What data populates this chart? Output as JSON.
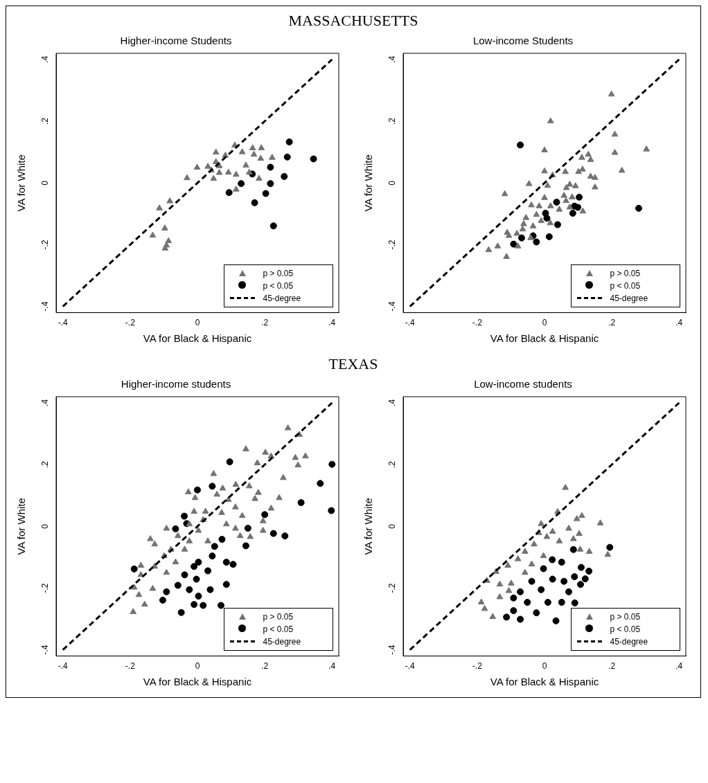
{
  "chart_data": [
    {
      "type": "scatter",
      "annotations": [
        "MASSACHUSETTS"
      ],
      "title": "Higher-income Students",
      "xlabel": "VA for Black & Hispanic",
      "ylabel": "VA for White",
      "xlim": [
        -0.42,
        0.42
      ],
      "ylim": [
        -0.42,
        0.42
      ],
      "xticks": [
        {
          "value": -0.4,
          "label": "-.4"
        },
        {
          "value": -0.2,
          "label": "-.2"
        },
        {
          "value": 0,
          "label": "0"
        },
        {
          "value": 0.2,
          "label": ".2"
        },
        {
          "value": 0.4,
          "label": ".4"
        }
      ],
      "yticks": [
        {
          "value": -0.4,
          "label": "-.4"
        },
        {
          "value": -0.2,
          "label": "-.2"
        },
        {
          "value": 0,
          "label": "0"
        },
        {
          "value": 0.2,
          "label": ".2"
        },
        {
          "value": 0.4,
          "label": ".4"
        }
      ],
      "grid": false,
      "legend": "bottom right",
      "series": [
        {
          "name": "p > 0.05",
          "type": "scatter",
          "marker": "triangle",
          "color": "#737373",
          "x": [
            0.055,
            0.111,
            0.083,
            0.133,
            0.164,
            0.19,
            0.168,
            0.188,
            0.222,
            -0.001,
            0.031,
            0.055,
            0.065,
            0.041,
            0.065,
            0.092,
            0.115,
            0.144,
            0.154,
            0.183,
            0.048,
            -0.031,
            0.115,
            -0.082,
            -0.113,
            -0.097,
            -0.133,
            -0.086,
            -0.092,
            -0.096
          ],
          "values": [
            0.099,
            0.122,
            0.089,
            0.1,
            0.113,
            0.113,
            0.092,
            0.079,
            0.082,
            0.05,
            0.053,
            0.068,
            0.055,
            0.041,
            0.033,
            0.034,
            0.027,
            0.057,
            0.034,
            0.014,
            0.014,
            0.016,
            -0.021,
            -0.059,
            -0.082,
            -0.147,
            -0.17,
            -0.188,
            -0.202,
            -0.212
          ]
        },
        {
          "name": "p < 0.05",
          "type": "scatter",
          "marker": "circle",
          "color": "#000000",
          "x": [
            0.217,
            0.163,
            0.13,
            0.094,
            0.217,
            0.203,
            0.17,
            0.226,
            0.273,
            0.267,
            0.258,
            0.345
          ],
          "values": [
            0.051,
            0.029,
            -0.002,
            -0.031,
            -0.002,
            -0.034,
            -0.064,
            -0.139,
            0.133,
            0.084,
            0.021,
            0.078
          ]
        },
        {
          "name": "45-degree",
          "type": "line",
          "marker": "none",
          "line_style": "dashed",
          "color": "#000000",
          "x": [
            -0.4,
            0.4
          ],
          "values": [
            -0.4,
            0.4
          ]
        }
      ]
    },
    {
      "type": "scatter",
      "title": "Low-income Students",
      "xlabel": "VA for Black & Hispanic",
      "ylabel": "VA for White",
      "xlim": [
        -0.42,
        0.42
      ],
      "ylim": [
        -0.42,
        0.42
      ],
      "xticks": [
        {
          "value": -0.4,
          "label": "-.4"
        },
        {
          "value": -0.2,
          "label": "-.2"
        },
        {
          "value": 0,
          "label": "0"
        },
        {
          "value": 0.2,
          "label": ".2"
        },
        {
          "value": 0.4,
          "label": ".4"
        }
      ],
      "yticks": [
        {
          "value": -0.4,
          "label": "-.4"
        },
        {
          "value": -0.2,
          "label": "-.2"
        },
        {
          "value": 0,
          "label": "0"
        },
        {
          "value": 0.2,
          "label": ".2"
        },
        {
          "value": 0.4,
          "label": ".4"
        }
      ],
      "grid": false,
      "legend": "bottom right",
      "series": [
        {
          "name": "p > 0.05",
          "type": "scatter",
          "marker": "triangle",
          "color": "#737373",
          "x": [
            0.018,
            0,
            0.209,
            0.209,
            0.303,
            0.23,
            0.199,
            0.111,
            0.13,
            0.137,
            0.113,
            0.101,
            0.062,
            0.024,
            0,
            0.137,
            0.15,
            0.15,
            0.075,
            0.092,
            0.065,
            0.009,
            -0.046,
            -0.118,
            0,
            0.058,
            0.082,
            0.064,
            -0.039,
            -0.016,
            0.018,
            0.044,
            0.075,
            0.114,
            -0.024,
            -0.055,
            -0.01,
            0.017,
            -0.062,
            -0.034,
            -0.065,
            -0.111,
            -0.082,
            -0.106,
            -0.041,
            -0.079,
            -0.139,
            -0.166,
            -0.113
          ],
          "values": [
            0.2,
            0.106,
            0.157,
            0.098,
            0.109,
            0.04,
            0.287,
            0.082,
            0.092,
            0.075,
            0.044,
            0.036,
            0.036,
            0.025,
            0.038,
            0.021,
            0.017,
            -0.014,
            -0.005,
            -0.01,
            -0.016,
            -0.009,
            -0.003,
            -0.036,
            -0.048,
            -0.041,
            -0.046,
            -0.058,
            -0.072,
            -0.075,
            -0.075,
            -0.086,
            -0.079,
            -0.092,
            -0.103,
            -0.113,
            -0.123,
            -0.13,
            -0.133,
            -0.14,
            -0.15,
            -0.161,
            -0.164,
            -0.171,
            -0.178,
            -0.205,
            -0.205,
            -0.217,
            -0.239
          ]
        },
        {
          "name": "p < 0.05",
          "type": "scatter",
          "marker": "circle",
          "color": "#000000",
          "x": [
            -0.072,
            0.28,
            0.103,
            0.036,
            0.089,
            0.099,
            0.084,
            0.003,
            0.007,
            0.039,
            0.014,
            -0.034,
            -0.068,
            -0.024,
            -0.092
          ],
          "values": [
            0.123,
            -0.082,
            -0.046,
            -0.062,
            -0.075,
            -0.079,
            -0.098,
            -0.098,
            -0.114,
            -0.135,
            -0.174,
            -0.171,
            -0.178,
            -0.191,
            -0.198
          ]
        },
        {
          "name": "45-degree",
          "type": "line",
          "marker": "none",
          "line_style": "dashed",
          "color": "#000000",
          "x": [
            -0.4,
            0.4
          ],
          "values": [
            -0.4,
            0.4
          ]
        }
      ]
    },
    {
      "type": "scatter",
      "annotations": [
        "TEXAS"
      ],
      "title": "Higher-income students",
      "xlabel": "VA for Black & Hispanic",
      "ylabel": "VA for White",
      "xlim": [
        -0.42,
        0.42
      ],
      "ylim": [
        -0.42,
        0.42
      ],
      "xticks": [
        {
          "value": -0.4,
          "label": "-.4"
        },
        {
          "value": -0.2,
          "label": "-.2"
        },
        {
          "value": 0,
          "label": "0"
        },
        {
          "value": 0.2,
          "label": ".2"
        },
        {
          "value": 0.4,
          "label": ".4"
        }
      ],
      "yticks": [
        {
          "value": -0.4,
          "label": "-.4"
        },
        {
          "value": -0.2,
          "label": "-.2"
        },
        {
          "value": 0,
          "label": "0"
        },
        {
          "value": 0.2,
          "label": ".2"
        },
        {
          "value": 0.4,
          "label": ".4"
        }
      ],
      "grid": false,
      "legend": "bottom right",
      "series": [
        {
          "name": "p > 0.05",
          "type": "scatter",
          "marker": "triangle",
          "color": "#737373",
          "x": [
            0.269,
            0.303,
            0.144,
            0.202,
            0.219,
            0.291,
            0.321,
            0.299,
            0.178,
            0.048,
            0.255,
            0.075,
            0.114,
            0.154,
            -0.027,
            -0.007,
            0.181,
            0.171,
            0.243,
            0.058,
            0.092,
            0.113,
            0.219,
            -0.01,
            0.024,
            0.072,
            0.133,
            0.195,
            0.017,
            -0.024,
            0.086,
            0.003,
            0.113,
            0.195,
            -0.092,
            -0.058,
            0.127,
            0.157,
            -0.14,
            -0.127,
            -0.024,
            0.031,
            -0.079,
            -0.038,
            -0.099,
            -0.065,
            -0.127,
            -0.168,
            -0.092,
            -0.168,
            -0.188,
            -0.133,
            -0.174,
            -0.157,
            -0.191
          ],
          "values": [
            0.318,
            0.297,
            0.25,
            0.239,
            0.227,
            0.222,
            0.227,
            0.198,
            0.205,
            0.17,
            0.157,
            0.123,
            0.135,
            0.13,
            0.111,
            0.092,
            0.109,
            0.089,
            0.092,
            0.103,
            0.086,
            0.062,
            0.058,
            0.048,
            0.048,
            0.044,
            0.034,
            0.017,
            0.021,
            0.007,
            0.007,
            -0.014,
            -0.007,
            -0.014,
            -0.007,
            -0.031,
            -0.031,
            -0.034,
            -0.041,
            -0.058,
            -0.048,
            -0.048,
            -0.075,
            -0.075,
            -0.096,
            -0.116,
            -0.13,
            -0.127,
            -0.15,
            -0.157,
            -0.198,
            -0.202,
            -0.222,
            -0.253,
            -0.277
          ]
        },
        {
          "name": "p < 0.05",
          "type": "scatter",
          "marker": "circle",
          "color": "#000000",
          "x": [
            0.096,
            0.044,
            0,
            0.365,
            0.4,
            0.398,
            0.308,
            0.2,
            0.226,
            0.26,
            0.15,
            -0.039,
            -0.032,
            -0.065,
            0.073,
            0.144,
            0.051,
            0.106,
            0.044,
            0.086,
            0.003,
            0.031,
            -0.01,
            -0.038,
            -0.003,
            0.086,
            0.038,
            -0.058,
            -0.024,
            -0.092,
            -0.188,
            0.003,
            -0.103,
            -0.01,
            0.017,
            0.07,
            -0.048
          ],
          "values": [
            0.209,
            0.13,
            0.118,
            0.139,
            0.201,
            0.051,
            0.077,
            0.038,
            -0.023,
            -0.031,
            -0.006,
            0.033,
            0.009,
            -0.008,
            -0.042,
            -0.063,
            -0.065,
            -0.123,
            -0.096,
            -0.116,
            -0.116,
            -0.144,
            -0.13,
            -0.157,
            -0.171,
            -0.188,
            -0.205,
            -0.191,
            -0.205,
            -0.212,
            -0.138,
            -0.226,
            -0.239,
            -0.253,
            -0.256,
            -0.256,
            -0.279
          ]
        },
        {
          "name": "45-degree",
          "type": "line",
          "marker": "none",
          "line_style": "dashed",
          "color": "#000000",
          "x": [
            -0.4,
            0.4
          ],
          "values": [
            -0.4,
            0.4
          ]
        }
      ]
    },
    {
      "type": "scatter",
      "title": "Low-income students",
      "xlabel": "VA for Black & Hispanic",
      "ylabel": "VA for White",
      "xlim": [
        -0.42,
        0.42
      ],
      "ylim": [
        -0.42,
        0.42
      ],
      "xticks": [
        {
          "value": -0.4,
          "label": "-.4"
        },
        {
          "value": -0.2,
          "label": "-.2"
        },
        {
          "value": 0,
          "label": "0"
        },
        {
          "value": 0.2,
          "label": ".2"
        },
        {
          "value": 0.4,
          "label": ".4"
        }
      ],
      "yticks": [
        {
          "value": -0.4,
          "label": "-.4"
        },
        {
          "value": -0.2,
          "label": "-.2"
        },
        {
          "value": 0,
          "label": "0"
        },
        {
          "value": 0.2,
          "label": ".2"
        },
        {
          "value": 0.4,
          "label": ".4"
        }
      ],
      "grid": false,
      "legend": "bottom right",
      "series": [
        {
          "name": "p > 0.05",
          "type": "scatter",
          "marker": "triangle",
          "color": "#737373",
          "x": [
            0.062,
            0.039,
            -0.01,
            0.111,
            0.096,
            0.166,
            -0.017,
            0.024,
            0.072,
            0.103,
            0.007,
            0.044,
            0.086,
            -0.031,
            0.133,
            0.188,
            0.106,
            -0.058,
            -0.079,
            -0.109,
            -0.144,
            -0.171,
            -0.133,
            -0.099,
            -0.038,
            -0.003,
            -0.058,
            -0.133,
            -0.106,
            -0.188,
            -0.178,
            -0.154
          ],
          "values": [
            0.125,
            0.047,
            0.008,
            0.034,
            0.024,
            0.01,
            -0.021,
            -0.017,
            -0.007,
            -0.024,
            -0.034,
            -0.048,
            -0.041,
            -0.058,
            -0.082,
            -0.092,
            -0.075,
            -0.082,
            -0.106,
            -0.127,
            -0.147,
            -0.176,
            -0.188,
            -0.185,
            -0.123,
            -0.096,
            -0.15,
            -0.229,
            -0.209,
            -0.246,
            -0.267,
            -0.293
          ]
        },
        {
          "name": "p < 0.05",
          "type": "scatter",
          "marker": "circle",
          "color": "#000000",
          "x": [
            0.194,
            0.086,
            0.023,
            0.051,
            0.109,
            0.132,
            0.089,
            0.121,
            0.107,
            -0.003,
            -0.038,
            0.024,
            0.058,
            0.072,
            -0.01,
            -0.072,
            -0.092,
            -0.051,
            0.01,
            0.051,
            -0.092,
            -0.113,
            -0.024,
            0.034,
            -0.072,
            0.09
          ],
          "values": [
            -0.068,
            -0.075,
            -0.108,
            -0.116,
            -0.133,
            -0.145,
            -0.163,
            -0.17,
            -0.188,
            -0.137,
            -0.178,
            -0.171,
            -0.178,
            -0.212,
            -0.205,
            -0.212,
            -0.232,
            -0.246,
            -0.246,
            -0.246,
            -0.273,
            -0.294,
            -0.28,
            -0.306,
            -0.301,
            -0.248
          ]
        },
        {
          "name": "45-degree",
          "type": "line",
          "marker": "none",
          "line_style": "dashed",
          "color": "#000000",
          "x": [
            -0.4,
            0.4
          ],
          "values": [
            -0.4,
            0.4
          ]
        }
      ]
    }
  ]
}
